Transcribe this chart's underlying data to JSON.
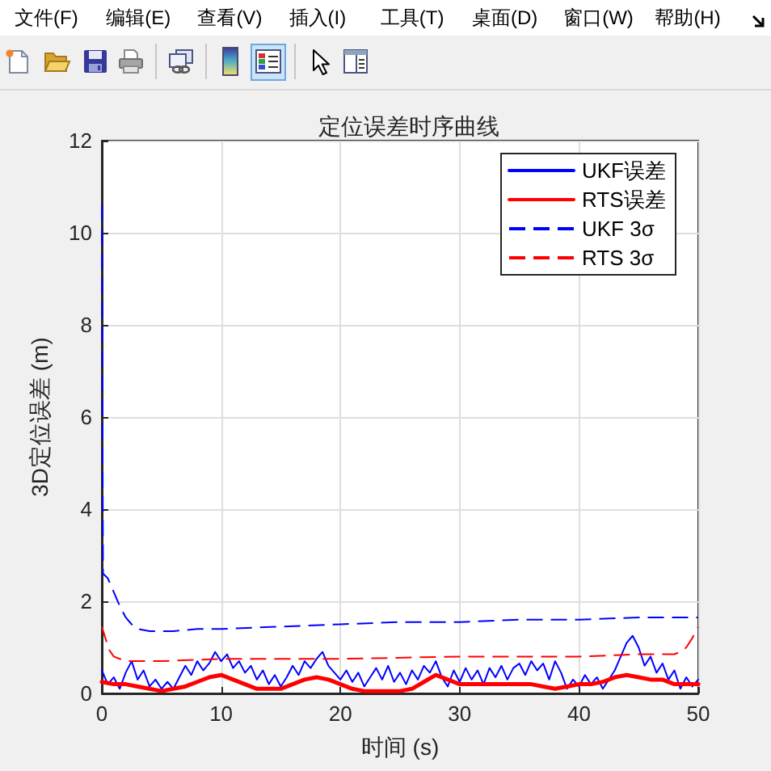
{
  "chart_data": {
    "type": "line",
    "title": "定位误差时序曲线",
    "xlabel": "时间 (s)",
    "ylabel": "3D定位误差 (m)",
    "annotations": [
      "文件(F)",
      "编辑(E)",
      "查看(V)",
      "插入(I)",
      "工具(T)",
      "桌面(D)",
      "窗口(W)",
      "帮助(H)"
    ],
    "xlim": [
      0,
      50
    ],
    "xticks": [
      0,
      10,
      20,
      30,
      40,
      50
    ],
    "ylim": [
      0,
      12
    ],
    "yticks": [
      0,
      2,
      4,
      6,
      8,
      10,
      12
    ],
    "grid": true,
    "legend": "top right",
    "series": [
      {
        "name": "UKF误差",
        "color": "#0000ff",
        "line_style": "solid",
        "x": [
          0,
          0.5,
          1,
          1.5,
          2,
          2.5,
          3,
          3.5,
          4,
          4.5,
          5,
          5.5,
          6,
          6.5,
          7,
          7.5,
          8,
          8.5,
          9,
          9.5,
          10,
          10.5,
          11,
          11.5,
          12,
          12.5,
          13,
          13.5,
          14,
          14.5,
          15,
          15.5,
          16,
          16.5,
          17,
          17.5,
          18,
          18.5,
          19,
          19.5,
          20,
          20.5,
          21,
          21.5,
          22,
          22.5,
          23,
          23.5,
          24,
          24.5,
          25,
          25.5,
          26,
          26.5,
          27,
          27.5,
          28,
          28.5,
          29,
          29.5,
          30,
          30.5,
          31,
          31.5,
          32,
          32.5,
          33,
          33.5,
          34,
          34.5,
          35,
          35.5,
          36,
          36.5,
          37,
          37.5,
          38,
          38.5,
          39,
          39.5,
          40,
          40.5,
          41,
          41.5,
          42,
          42.5,
          43,
          43.5,
          44,
          44.5,
          45,
          45.5,
          46,
          46.5,
          47,
          47.5,
          48,
          48.5,
          49,
          49.5,
          50
        ],
        "values": [
          0.5,
          0.2,
          0.35,
          0.1,
          0.45,
          0.7,
          0.3,
          0.5,
          0.15,
          0.3,
          0.1,
          0.25,
          0.1,
          0.35,
          0.6,
          0.4,
          0.7,
          0.5,
          0.65,
          0.9,
          0.7,
          0.85,
          0.55,
          0.7,
          0.45,
          0.6,
          0.3,
          0.5,
          0.2,
          0.4,
          0.15,
          0.35,
          0.6,
          0.4,
          0.7,
          0.55,
          0.75,
          0.9,
          0.6,
          0.45,
          0.3,
          0.5,
          0.25,
          0.45,
          0.15,
          0.35,
          0.55,
          0.3,
          0.6,
          0.25,
          0.45,
          0.2,
          0.5,
          0.3,
          0.6,
          0.45,
          0.7,
          0.35,
          0.15,
          0.5,
          0.25,
          0.55,
          0.3,
          0.5,
          0.2,
          0.55,
          0.35,
          0.6,
          0.3,
          0.55,
          0.65,
          0.4,
          0.7,
          0.5,
          0.65,
          0.3,
          0.7,
          0.45,
          0.1,
          0.3,
          0.15,
          0.4,
          0.2,
          0.35,
          0.1,
          0.3,
          0.5,
          0.8,
          1.1,
          1.25,
          1.0,
          0.6,
          0.8,
          0.45,
          0.65,
          0.3,
          0.5,
          0.1,
          0.35,
          0.15,
          0.3
        ]
      },
      {
        "name": "RTS误差",
        "color": "#ff0000",
        "line_style": "solid",
        "x": [
          0,
          1,
          2,
          3,
          4,
          5,
          6,
          7,
          8,
          9,
          10,
          11,
          12,
          13,
          14,
          15,
          16,
          17,
          18,
          19,
          20,
          21,
          22,
          23,
          24,
          25,
          26,
          27,
          28,
          29,
          30,
          31,
          32,
          33,
          34,
          35,
          36,
          37,
          38,
          39,
          40,
          41,
          42,
          43,
          44,
          45,
          46,
          47,
          48,
          49,
          50
        ],
        "values": [
          0.25,
          0.2,
          0.2,
          0.15,
          0.1,
          0.05,
          0.1,
          0.15,
          0.25,
          0.35,
          0.4,
          0.3,
          0.2,
          0.1,
          0.1,
          0.1,
          0.2,
          0.3,
          0.35,
          0.3,
          0.2,
          0.1,
          0.05,
          0.05,
          0.05,
          0.05,
          0.1,
          0.25,
          0.4,
          0.3,
          0.2,
          0.2,
          0.2,
          0.2,
          0.2,
          0.2,
          0.2,
          0.15,
          0.1,
          0.15,
          0.2,
          0.2,
          0.25,
          0.35,
          0.4,
          0.35,
          0.3,
          0.3,
          0.2,
          0.2,
          0.2
        ]
      },
      {
        "name": "UKF 3σ",
        "color": "#0000ff",
        "line_style": "dashed",
        "x": [
          0,
          0.1,
          0.5,
          1,
          1.5,
          2,
          2.5,
          3,
          4,
          5,
          6,
          8,
          10,
          15,
          20,
          25,
          30,
          35,
          40,
          45,
          50
        ],
        "values": [
          10.6,
          2.6,
          2.5,
          2.2,
          1.9,
          1.65,
          1.5,
          1.4,
          1.35,
          1.35,
          1.35,
          1.4,
          1.4,
          1.45,
          1.5,
          1.55,
          1.55,
          1.6,
          1.6,
          1.65,
          1.65
        ]
      },
      {
        "name": "RTS 3σ",
        "color": "#ff0000",
        "line_style": "dashed",
        "x": [
          0,
          0.3,
          0.6,
          1,
          1.5,
          2,
          5,
          10,
          20,
          30,
          40,
          45,
          47,
          48,
          48.5,
          49,
          49.5,
          50
        ],
        "values": [
          1.45,
          1.2,
          0.95,
          0.8,
          0.75,
          0.7,
          0.7,
          0.75,
          0.75,
          0.8,
          0.8,
          0.85,
          0.85,
          0.85,
          0.9,
          1.0,
          1.2,
          1.45
        ]
      }
    ]
  }
}
